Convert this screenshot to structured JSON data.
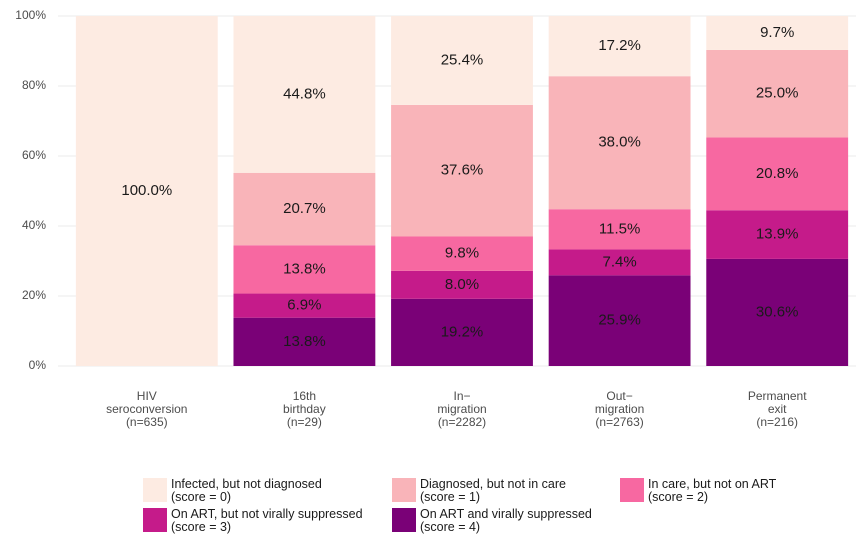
{
  "chart_data": {
    "type": "stacked_bar",
    "categories": [
      "HIV\nseroconversion\n(n=635)",
      "16th\nbirthday\n(n=29)",
      "In−\nmigration\n(n=2282)",
      "Out−\nmigration\n(n=2763)",
      "Permanent\nexit\n(n=216)"
    ],
    "series": [
      {
        "name": "Infected, but not diagnosed\n(score = 0)",
        "color": "#fdebe2",
        "values": [
          100.0,
          44.8,
          25.4,
          17.2,
          9.7
        ],
        "value_labels": [
          "100.0%",
          "44.8%",
          "25.4%",
          "17.2%",
          "9.7%"
        ]
      },
      {
        "name": "Diagnosed, but not in care\n(score = 1)",
        "color": "#f9b4b9",
        "values": [
          null,
          20.7,
          37.6,
          38.0,
          25.0
        ],
        "value_labels": [
          null,
          "20.7%",
          "37.6%",
          "38.0%",
          "25.0%"
        ]
      },
      {
        "name": "In care, but not on ART\n(score = 2)",
        "color": "#f768a1",
        "values": [
          null,
          13.8,
          9.8,
          11.5,
          20.8
        ],
        "value_labels": [
          null,
          "13.8%",
          "9.8%",
          "11.5%",
          "20.8%"
        ]
      },
      {
        "name": "On ART, but not virally suppressed\n(score = 3)",
        "color": "#c51b8a",
        "values": [
          null,
          6.9,
          8.0,
          7.4,
          13.9
        ],
        "value_labels": [
          null,
          "6.9%",
          "8.0%",
          "7.4%",
          "13.9%"
        ]
      },
      {
        "name": "On ART and virally suppressed\n(score = 4)",
        "color": "#7a0177",
        "values": [
          null,
          13.8,
          19.2,
          25.9,
          30.6
        ],
        "value_labels": [
          null,
          "13.8%",
          "19.2%",
          "25.9%",
          "30.6%"
        ]
      }
    ],
    "ylim": [
      0,
      100
    ],
    "yticks": [
      {
        "value": 0,
        "label": "0%"
      },
      {
        "value": 20,
        "label": "20%"
      },
      {
        "value": 40,
        "label": "40%"
      },
      {
        "value": 60,
        "label": "60%"
      },
      {
        "value": 80,
        "label": "80%"
      },
      {
        "value": 100,
        "label": "100%"
      }
    ],
    "grid": true,
    "legend": "bottom"
  }
}
